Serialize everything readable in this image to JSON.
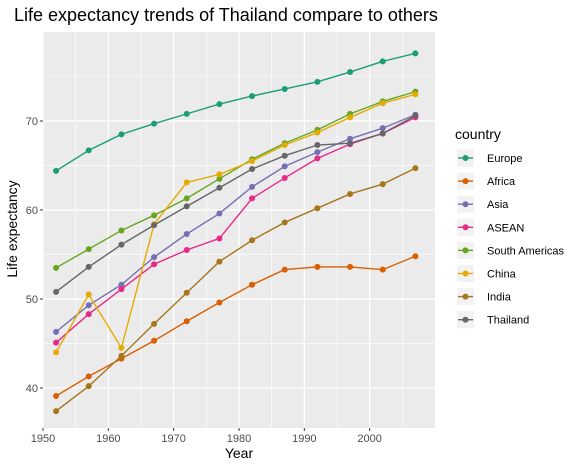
{
  "chart_data": {
    "type": "line",
    "title": "Life expectancy trends of Thailand compare to others",
    "xlabel": "Year",
    "ylabel": "Life expectancy",
    "xlim": [
      1950,
      2010
    ],
    "ylim": [
      35.5,
      80
    ],
    "x_ticks": [
      1950,
      1960,
      1970,
      1980,
      1990,
      2000
    ],
    "y_ticks": [
      40,
      50,
      60,
      70
    ],
    "grid": true,
    "legend_position": "right",
    "legend_title": "country",
    "x": [
      1952,
      1957,
      1962,
      1967,
      1972,
      1977,
      1982,
      1987,
      1992,
      1997,
      2002,
      2007
    ],
    "series": [
      {
        "name": "Europe",
        "color": "#1b9e77",
        "values": [
          64.4,
          66.7,
          68.5,
          69.7,
          70.8,
          71.9,
          72.8,
          73.6,
          74.4,
          75.5,
          76.7,
          77.6
        ]
      },
      {
        "name": "Africa",
        "color": "#d95f02",
        "values": [
          39.1,
          41.3,
          43.3,
          45.3,
          47.5,
          49.6,
          51.6,
          53.3,
          53.6,
          53.6,
          53.3,
          54.8
        ]
      },
      {
        "name": "Asia",
        "color": "#7570b3",
        "values": [
          46.3,
          49.3,
          51.6,
          54.7,
          57.3,
          59.6,
          62.6,
          64.9,
          66.5,
          68.0,
          69.2,
          70.7
        ]
      },
      {
        "name": "ASEAN",
        "color": "#e7298a",
        "values": [
          45.1,
          48.3,
          51.1,
          53.9,
          55.5,
          56.8,
          61.3,
          63.6,
          65.8,
          67.4,
          68.6,
          70.4
        ]
      },
      {
        "name": "South Americas",
        "color": "#66a61e",
        "values": [
          53.5,
          55.6,
          57.7,
          59.4,
          61.3,
          63.5,
          65.7,
          67.5,
          69.0,
          70.8,
          72.2,
          73.3
        ]
      },
      {
        "name": "China",
        "color": "#e6ab02",
        "values": [
          44.0,
          50.5,
          44.5,
          58.4,
          63.1,
          64.0,
          65.5,
          67.3,
          68.7,
          70.4,
          72.0,
          73.0
        ]
      },
      {
        "name": "India",
        "color": "#a6761d",
        "values": [
          37.4,
          40.2,
          43.6,
          47.2,
          50.7,
          54.2,
          56.6,
          58.6,
          60.2,
          61.8,
          62.9,
          64.7
        ]
      },
      {
        "name": "Thailand",
        "color": "#666666",
        "values": [
          50.8,
          53.6,
          56.1,
          58.3,
          60.4,
          62.5,
          64.6,
          66.1,
          67.3,
          67.5,
          68.6,
          70.6
        ]
      }
    ]
  }
}
